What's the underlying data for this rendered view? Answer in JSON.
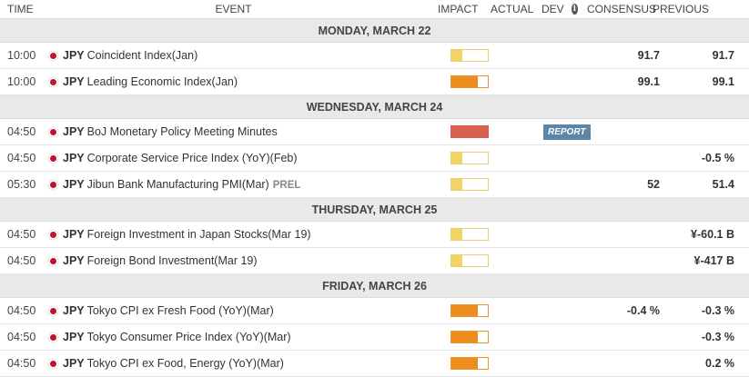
{
  "header": {
    "time": "TIME",
    "event": "EVENT",
    "impact": "IMPACT",
    "actual": "ACTUAL",
    "dev": "DEV",
    "consensus": "CONSENSUS",
    "previous": "PREVIOUS",
    "info_icon": "i"
  },
  "days": [
    {
      "label": "MONDAY, MARCH 22",
      "events": [
        {
          "time": "10:00",
          "ccy": "JPY",
          "name": "Coincident Index(Jan)",
          "tag": "",
          "impact": "low",
          "actual": "",
          "dev": "",
          "consensus": "91.7",
          "previous": "91.7",
          "report": ""
        },
        {
          "time": "10:00",
          "ccy": "JPY",
          "name": "Leading Economic Index(Jan)",
          "tag": "",
          "impact": "medium",
          "actual": "",
          "dev": "",
          "consensus": "99.1",
          "previous": "99.1",
          "report": ""
        }
      ]
    },
    {
      "label": "WEDNESDAY, MARCH 24",
      "events": [
        {
          "time": "04:50",
          "ccy": "JPY",
          "name": "BoJ Monetary Policy Meeting Minutes",
          "tag": "",
          "impact": "high",
          "actual": "",
          "dev": "",
          "consensus": "",
          "previous": "",
          "report": "REPORT"
        },
        {
          "time": "04:50",
          "ccy": "JPY",
          "name": "Corporate Service Price Index (YoY)(Feb)",
          "tag": "",
          "impact": "low",
          "actual": "",
          "dev": "",
          "consensus": "",
          "previous": "-0.5 %",
          "report": ""
        },
        {
          "time": "05:30",
          "ccy": "JPY",
          "name": "Jibun Bank Manufacturing PMI(Mar)",
          "tag": "PREL",
          "impact": "low",
          "actual": "",
          "dev": "",
          "consensus": "52",
          "previous": "51.4",
          "report": ""
        }
      ]
    },
    {
      "label": "THURSDAY, MARCH 25",
      "events": [
        {
          "time": "04:50",
          "ccy": "JPY",
          "name": "Foreign Investment in Japan Stocks(Mar 19)",
          "tag": "",
          "impact": "low",
          "actual": "",
          "dev": "",
          "consensus": "",
          "previous": "¥-60.1 B",
          "report": ""
        },
        {
          "time": "04:50",
          "ccy": "JPY",
          "name": "Foreign Bond Investment(Mar 19)",
          "tag": "",
          "impact": "low",
          "actual": "",
          "dev": "",
          "consensus": "",
          "previous": "¥-417 B",
          "report": ""
        }
      ]
    },
    {
      "label": "FRIDAY, MARCH 26",
      "events": [
        {
          "time": "04:50",
          "ccy": "JPY",
          "name": "Tokyo CPI ex Fresh Food (YoY)(Mar)",
          "tag": "",
          "impact": "medium",
          "actual": "",
          "dev": "",
          "consensus": "-0.4 %",
          "previous": "-0.3 %",
          "report": ""
        },
        {
          "time": "04:50",
          "ccy": "JPY",
          "name": "Tokyo Consumer Price Index (YoY)(Mar)",
          "tag": "",
          "impact": "medium",
          "actual": "",
          "dev": "",
          "consensus": "",
          "previous": "-0.3 %",
          "report": ""
        },
        {
          "time": "04:50",
          "ccy": "JPY",
          "name": "Tokyo CPI ex Food, Energy (YoY)(Mar)",
          "tag": "",
          "impact": "medium",
          "actual": "",
          "dev": "",
          "consensus": "",
          "previous": "0.2 %",
          "report": ""
        }
      ]
    }
  ],
  "colors": {
    "impact_low": "#f2d466",
    "impact_medium": "#ec8d1d",
    "impact_high": "#d96152",
    "report_button": "#5b86a8",
    "day_band": "#e9e9e9",
    "flag": "#c0132b"
  },
  "icons": {
    "flag": "japan-flag-icon",
    "info": "info-icon"
  }
}
